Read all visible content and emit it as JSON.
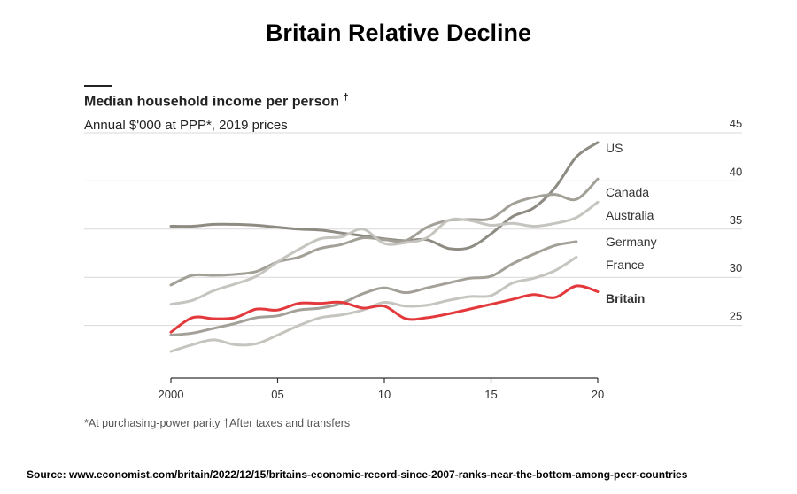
{
  "page_title": "Britain Relative Decline",
  "chart_data": {
    "type": "line",
    "title": "Median household income per person",
    "title_mark": "†",
    "subtitle": "Annual $'000 at PPP*, 2019 prices",
    "xlim": [
      2000,
      2020
    ],
    "ylim": [
      20,
      45
    ],
    "x_ticks": [
      2000,
      2005,
      2010,
      2015,
      2020
    ],
    "x_tick_labels": [
      "2000",
      "05",
      "10",
      "15",
      "20"
    ],
    "y_ticks": [
      25,
      30,
      35,
      40,
      45
    ],
    "y_tick_labels": [
      "25",
      "30",
      "35",
      "40",
      "45"
    ],
    "grid": true,
    "series": [
      {
        "name": "US",
        "color": "#8e8b83",
        "x": [
          2000,
          2001,
          2002,
          2003,
          2004,
          2005,
          2006,
          2007,
          2008,
          2009,
          2010,
          2011,
          2012,
          2013,
          2014,
          2015,
          2016,
          2017,
          2018,
          2019,
          2020
        ],
        "values": [
          35.3,
          35.3,
          35.5,
          35.5,
          35.4,
          35.2,
          35.0,
          34.9,
          34.6,
          34.3,
          34.0,
          33.8,
          33.9,
          33.0,
          33.1,
          34.5,
          36.3,
          37.2,
          39.3,
          42.5,
          44.0
        ]
      },
      {
        "name": "Canada",
        "color": "#a3a098",
        "x": [
          2000,
          2001,
          2002,
          2003,
          2004,
          2005,
          2006,
          2007,
          2008,
          2009,
          2010,
          2011,
          2012,
          2013,
          2014,
          2015,
          2016,
          2017,
          2018,
          2019,
          2020
        ],
        "values": [
          29.2,
          30.2,
          30.2,
          30.3,
          30.6,
          31.6,
          32.1,
          33.0,
          33.4,
          34.1,
          33.9,
          33.8,
          35.2,
          35.9,
          36.0,
          36.1,
          37.6,
          38.3,
          38.6,
          38.1,
          40.2
        ]
      },
      {
        "name": "Australia",
        "color": "#c6c4be",
        "x": [
          2000,
          2001,
          2002,
          2003,
          2004,
          2005,
          2006,
          2007,
          2008,
          2009,
          2010,
          2011,
          2012,
          2013,
          2014,
          2015,
          2016,
          2017,
          2018,
          2019,
          2020
        ],
        "values": [
          27.2,
          27.6,
          28.6,
          29.3,
          30.1,
          31.6,
          32.9,
          34.0,
          34.2,
          35.0,
          33.5,
          33.6,
          34.1,
          35.9,
          35.9,
          35.4,
          35.6,
          35.3,
          35.6,
          36.2,
          37.8
        ]
      },
      {
        "name": "Germany",
        "color": "#a3a098",
        "x": [
          2000,
          2001,
          2002,
          2003,
          2004,
          2005,
          2006,
          2007,
          2008,
          2009,
          2010,
          2011,
          2012,
          2013,
          2014,
          2015,
          2016,
          2017,
          2018,
          2019
        ],
        "values": [
          24.0,
          24.2,
          24.7,
          25.2,
          25.8,
          26.0,
          26.6,
          26.8,
          27.3,
          28.3,
          28.9,
          28.4,
          28.9,
          29.4,
          29.9,
          30.1,
          31.4,
          32.4,
          33.3,
          33.7
        ]
      },
      {
        "name": "France",
        "color": "#c6c4be",
        "x": [
          2000,
          2001,
          2002,
          2003,
          2004,
          2005,
          2006,
          2007,
          2008,
          2009,
          2010,
          2011,
          2012,
          2013,
          2014,
          2015,
          2016,
          2017,
          2018,
          2019
        ],
        "values": [
          22.3,
          23.0,
          23.5,
          23.0,
          23.1,
          24.0,
          25.0,
          25.8,
          26.1,
          26.6,
          27.4,
          27.0,
          27.1,
          27.6,
          28.0,
          28.1,
          29.4,
          29.9,
          30.7,
          32.1
        ]
      },
      {
        "name": "Britain",
        "color": "#e3393c",
        "x": [
          2000,
          2001,
          2002,
          2003,
          2004,
          2005,
          2006,
          2007,
          2008,
          2009,
          2010,
          2011,
          2012,
          2013,
          2014,
          2015,
          2016,
          2017,
          2018,
          2019,
          2020
        ],
        "values": [
          24.3,
          25.8,
          25.7,
          25.8,
          26.7,
          26.6,
          27.3,
          27.3,
          27.4,
          26.8,
          27.0,
          25.7,
          25.8,
          26.2,
          26.7,
          27.2,
          27.7,
          28.2,
          27.9,
          29.1,
          28.5
        ]
      }
    ],
    "series_labels": [
      "US",
      "Canada",
      "Australia",
      "Germany",
      "France",
      "Britain"
    ],
    "footnote": "*At purchasing-power parity †After taxes and transfers"
  },
  "source_text": "Source: www.economist.com/britain/2022/12/15/britains-economic-record-since-2007-ranks-near-the-bottom-among-peer-countries"
}
